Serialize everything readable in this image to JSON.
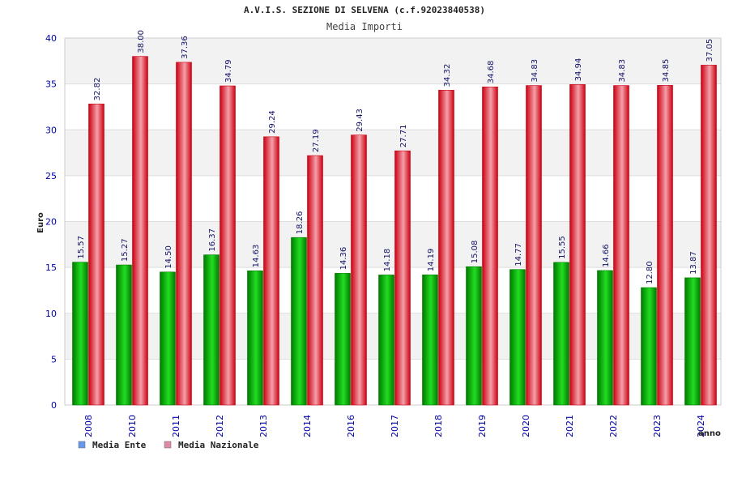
{
  "chart_data": {
    "type": "bar",
    "title": "A.V.I.S. SEZIONE DI SELVENA (c.f.92023840538)",
    "subtitle": "Media Importi",
    "ylabel": "Euro",
    "xlabel": "anno",
    "ylim": [
      0,
      40
    ],
    "yticks": [
      0,
      5,
      10,
      15,
      20,
      25,
      30,
      35,
      40
    ],
    "categories": [
      "2008",
      "2010",
      "2011",
      "2012",
      "2013",
      "2014",
      "2016",
      "2017",
      "2018",
      "2019",
      "2020",
      "2021",
      "2022",
      "2023",
      "2024"
    ],
    "series": [
      {
        "name": "Media Ente",
        "legend_color": "#6699ee",
        "color_dark": "#007a00",
        "color_light": "#22dd22",
        "values": [
          15.57,
          15.27,
          14.5,
          16.37,
          14.63,
          18.26,
          14.36,
          14.18,
          14.19,
          15.08,
          14.77,
          15.55,
          14.66,
          12.8,
          13.87
        ],
        "labels": [
          "15.57",
          "15.27",
          "14.50",
          "16.37",
          "14.63",
          "18.26",
          "14.36",
          "14.18",
          "14.19",
          "15.08",
          "14.77",
          "15.55",
          "14.66",
          "12.80",
          "13.87"
        ]
      },
      {
        "name": "Media Nazionale",
        "legend_color": "#e08aa8",
        "color_dark": "#cc0011",
        "color_light": "#f4a0aa",
        "values": [
          32.82,
          38.0,
          37.36,
          34.79,
          29.24,
          27.19,
          29.43,
          27.71,
          34.32,
          34.68,
          34.83,
          34.94,
          34.83,
          34.85,
          37.05
        ],
        "labels": [
          "32.82",
          "38.00",
          "37.36",
          "34.79",
          "29.24",
          "27.19",
          "29.43",
          "27.71",
          "34.32",
          "34.68",
          "34.83",
          "34.94",
          "34.83",
          "34.85",
          "37.05"
        ]
      }
    ],
    "grid": true,
    "legend_position": "bottom-left"
  }
}
